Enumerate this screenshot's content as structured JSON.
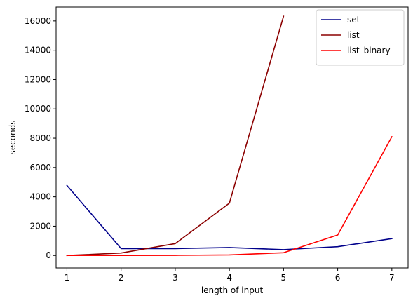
{
  "chart_data": {
    "type": "line",
    "xlabel": "length of input",
    "ylabel": "seconds",
    "x": [
      1,
      2,
      3,
      4,
      5,
      6,
      7
    ],
    "xlim": [
      0.8,
      7.3
    ],
    "ylim": [
      -850,
      16950
    ],
    "xticks": [
      1,
      2,
      3,
      4,
      5,
      6,
      7
    ],
    "yticks": [
      0,
      2000,
      4000,
      6000,
      8000,
      10000,
      12000,
      14000,
      16000
    ],
    "grid": false,
    "legend_position": "top-right",
    "series": [
      {
        "name": "set",
        "color": "#00008b",
        "x": [
          1,
          2,
          3,
          4,
          5,
          6,
          7
        ],
        "values": [
          4780,
          470,
          470,
          540,
          400,
          600,
          1150
        ]
      },
      {
        "name": "list",
        "color": "#8b0000",
        "x": [
          1,
          2,
          3,
          4,
          5
        ],
        "values": [
          0,
          170,
          810,
          3570,
          16320
        ]
      },
      {
        "name": "list_binary",
        "color": "#ff0000",
        "x": [
          1,
          2,
          3,
          4,
          5,
          6,
          7
        ],
        "values": [
          0,
          0,
          10,
          40,
          190,
          1400,
          8100
        ]
      }
    ]
  }
}
